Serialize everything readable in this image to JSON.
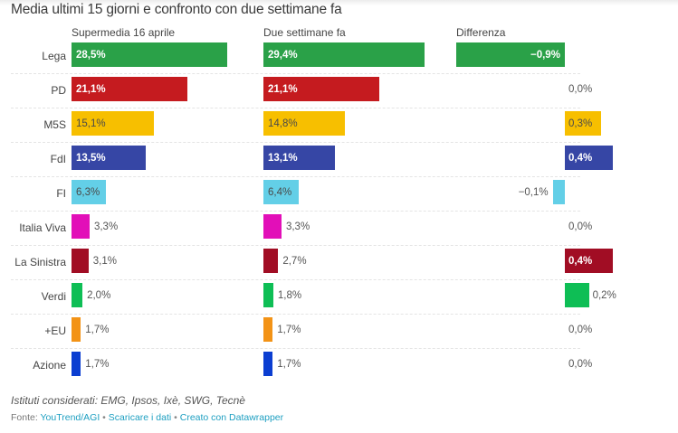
{
  "chart_data": {
    "type": "bar",
    "title": "Media ultimi 15 giorni e confronto con due settimane fa",
    "columns": [
      "Supermedia 16 aprile",
      "Due settimane fa",
      "Differenza"
    ],
    "categories": [
      "Lega",
      "PD",
      "M5S",
      "FdI",
      "FI",
      "Italia Viva",
      "La Sinistra",
      "Verdi",
      "+EU",
      "Azione"
    ],
    "colors": [
      "#2aa148",
      "#c51b1f",
      "#f7bf00",
      "#3646a5",
      "#63cfe7",
      "#e20fb8",
      "#a10d24",
      "#0ebe55",
      "#f39316",
      "#0b3ed1"
    ],
    "series": [
      {
        "name": "Supermedia 16 aprile",
        "values": [
          28.5,
          21.1,
          15.1,
          13.5,
          6.3,
          3.3,
          3.1,
          2.0,
          1.7,
          1.7
        ],
        "labels": [
          "28,5%",
          "21,1%",
          "15,1%",
          "13,5%",
          "6,3%",
          "3,3%",
          "3,1%",
          "2,0%",
          "1,7%",
          "1,7%"
        ]
      },
      {
        "name": "Due settimane fa",
        "values": [
          29.4,
          21.1,
          14.8,
          13.1,
          6.4,
          3.3,
          2.7,
          1.8,
          1.7,
          1.7
        ],
        "labels": [
          "29,4%",
          "21,1%",
          "14,8%",
          "13,1%",
          "6,4%",
          "3,3%",
          "2,7%",
          "1,8%",
          "1,7%",
          "1,7%"
        ]
      },
      {
        "name": "Differenza",
        "values": [
          -0.9,
          0.0,
          0.3,
          0.4,
          -0.1,
          0.0,
          0.4,
          0.2,
          0.0,
          0.0
        ],
        "labels": [
          "−0,9%",
          "0,0%",
          "0,3%",
          "0,4%",
          "−0,1%",
          "0,0%",
          "0,4%",
          "0,2%",
          "0,0%",
          "0,0%"
        ]
      }
    ],
    "xlabel": "",
    "ylabel": "",
    "grid": false,
    "legend": "none"
  },
  "footer": {
    "notes": "Istituti considerati: EMG, Ipsos, Ixè, SWG, Tecnè",
    "source_prefix": "Fonte: ",
    "source_link": "YouTrend/AGI",
    "separator": " • ",
    "download_link": "Scaricare i dati",
    "credit_link": "Creato con Datawrapper"
  }
}
